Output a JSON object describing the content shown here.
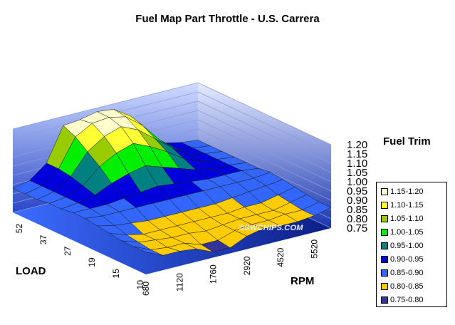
{
  "chart_data": {
    "type": "surface",
    "title": "Fuel Map Part Throttle - U.S. Carrera",
    "xlabel": "RPM",
    "ylabel": "LOAD",
    "zlabel": "Fuel Trim",
    "x_tick_labels": [
      "680",
      "1120",
      "1760",
      "2920",
      "4520",
      "5520"
    ],
    "y_tick_labels": [
      "10",
      "15",
      "19",
      "27",
      "37",
      "52"
    ],
    "z_ticks": [
      "0.75",
      "0.80",
      "0.85",
      "0.90",
      "0.95",
      "1.00",
      "1.05",
      "1.10",
      "1.15",
      "1.20"
    ],
    "zlim": [
      0.75,
      1.2
    ],
    "watermark": "©SWCHIPS.COM",
    "legend": [
      {
        "label": "1.15-1.20",
        "color": "#ffffcc"
      },
      {
        "label": "1.10-1.15",
        "color": "#ffff33"
      },
      {
        "label": "1.05-1.10",
        "color": "#99cc00"
      },
      {
        "label": "1.00-1.05",
        "color": "#00ee00"
      },
      {
        "label": "0.95-1.00",
        "color": "#008080"
      },
      {
        "label": "0.90-0.95",
        "color": "#0000dd"
      },
      {
        "label": "0.85-0.90",
        "color": "#3366ff"
      },
      {
        "label": "0.80-0.85",
        "color": "#ffcc00"
      },
      {
        "label": "0.75-0.80",
        "color": "#333399"
      }
    ],
    "rpm_grid": [
      "680",
      "",
      "1120",
      "",
      "1760",
      "",
      "2920",
      "",
      "4520",
      "",
      "5520",
      ""
    ],
    "load_grid": [
      "10",
      "",
      "15",
      "",
      "19",
      "",
      "27",
      "",
      "37",
      "",
      "52",
      ""
    ],
    "values": [
      [
        0.87,
        0.83,
        0.83,
        0.82,
        0.78,
        0.78,
        0.82,
        0.84,
        0.83,
        0.83,
        0.84,
        0.86
      ],
      [
        0.87,
        0.83,
        0.82,
        0.82,
        0.79,
        0.79,
        0.82,
        0.83,
        0.83,
        0.84,
        0.84,
        0.86
      ],
      [
        0.87,
        0.84,
        0.83,
        0.82,
        0.82,
        0.81,
        0.82,
        0.83,
        0.83,
        0.83,
        0.85,
        0.87
      ],
      [
        0.88,
        0.85,
        0.83,
        0.83,
        0.83,
        0.83,
        0.83,
        0.83,
        0.84,
        0.84,
        0.86,
        0.88
      ],
      [
        0.89,
        0.87,
        0.86,
        0.85,
        0.85,
        0.85,
        0.85,
        0.85,
        0.86,
        0.87,
        0.88,
        0.89
      ],
      [
        0.9,
        0.89,
        0.89,
        0.89,
        0.89,
        0.89,
        0.89,
        0.89,
        0.89,
        0.89,
        0.89,
        0.9
      ],
      [
        0.9,
        0.9,
        0.9,
        0.91,
        0.92,
        0.93,
        0.92,
        0.91,
        0.9,
        0.9,
        0.9,
        0.89
      ],
      [
        0.89,
        0.9,
        0.92,
        0.96,
        0.99,
        1.01,
        0.98,
        0.95,
        0.92,
        0.9,
        0.9,
        0.89
      ],
      [
        0.89,
        0.9,
        0.94,
        1.02,
        1.07,
        1.1,
        1.06,
        1.01,
        0.95,
        0.91,
        0.9,
        0.89
      ],
      [
        0.88,
        0.9,
        0.96,
        1.07,
        1.13,
        1.16,
        1.12,
        1.05,
        0.98,
        0.92,
        0.9,
        0.89
      ],
      [
        0.88,
        0.9,
        0.97,
        1.12,
        1.17,
        1.18,
        1.16,
        1.09,
        0.99,
        0.92,
        0.9,
        0.89
      ],
      [
        0.88,
        0.9,
        0.97,
        1.15,
        1.16,
        1.18,
        1.17,
        1.11,
        0.99,
        0.92,
        0.9,
        0.89
      ]
    ]
  }
}
